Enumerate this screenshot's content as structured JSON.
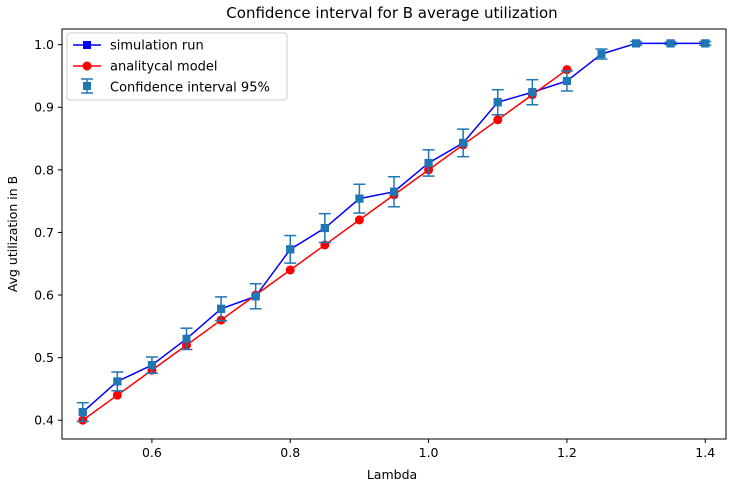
{
  "chart_data": {
    "type": "line",
    "title": "Confidence interval for B average utilization",
    "xlabel": "Lambda",
    "ylabel": "Avg utilization in B",
    "xlim": [
      0.47,
      1.43
    ],
    "ylim": [
      0.37,
      1.025
    ],
    "xticks": [
      0.6,
      0.8,
      1.0,
      1.2,
      1.4
    ],
    "xtick_labels": [
      "0.6",
      "0.8",
      "1.0",
      "1.2",
      "1.4"
    ],
    "yticks": [
      0.4,
      0.5,
      0.6,
      0.7,
      0.8,
      0.9,
      1.0
    ],
    "ytick_labels": [
      "0.4",
      "0.5",
      "0.6",
      "0.7",
      "0.8",
      "0.9",
      "1.0"
    ],
    "grid": false,
    "legend_position": "top-left",
    "series": [
      {
        "name": "simulation run",
        "color": "#0000ff",
        "marker": "square",
        "x": [
          0.5,
          0.55,
          0.6,
          0.65,
          0.7,
          0.75,
          0.8,
          0.85,
          0.9,
          0.95,
          1.0,
          1.05,
          1.1,
          1.15,
          1.2,
          1.25,
          1.3,
          1.35,
          1.4
        ],
        "y": [
          0.413,
          0.462,
          0.488,
          0.53,
          0.578,
          0.598,
          0.673,
          0.707,
          0.754,
          0.765,
          0.811,
          0.843,
          0.908,
          0.924,
          0.942,
          0.985,
          1.002,
          1.002,
          1.002
        ]
      },
      {
        "name": "analitycal model",
        "color": "#ff0000",
        "marker": "circle",
        "x": [
          0.5,
          0.55,
          0.6,
          0.65,
          0.7,
          0.75,
          0.8,
          0.85,
          0.9,
          0.95,
          1.0,
          1.05,
          1.1,
          1.15,
          1.2
        ],
        "y": [
          0.4,
          0.44,
          0.48,
          0.52,
          0.56,
          0.6,
          0.64,
          0.68,
          0.72,
          0.76,
          0.8,
          0.84,
          0.88,
          0.92,
          0.96
        ]
      },
      {
        "name": "Confidence interval 95%",
        "color": "#1f77b4",
        "marker": "square",
        "type": "errorbar",
        "x": [
          0.5,
          0.55,
          0.6,
          0.65,
          0.7,
          0.75,
          0.8,
          0.85,
          0.9,
          0.95,
          1.0,
          1.05,
          1.1,
          1.15,
          1.2,
          1.25,
          1.3,
          1.35,
          1.4
        ],
        "y": [
          0.413,
          0.462,
          0.488,
          0.53,
          0.578,
          0.598,
          0.673,
          0.707,
          0.754,
          0.765,
          0.811,
          0.843,
          0.908,
          0.924,
          0.942,
          0.985,
          1.002,
          1.002,
          1.002
        ],
        "err": [
          0.015,
          0.015,
          0.013,
          0.017,
          0.019,
          0.02,
          0.022,
          0.023,
          0.023,
          0.024,
          0.021,
          0.022,
          0.02,
          0.02,
          0.016,
          0.008,
          0.003,
          0.002,
          0.003
        ]
      }
    ]
  }
}
